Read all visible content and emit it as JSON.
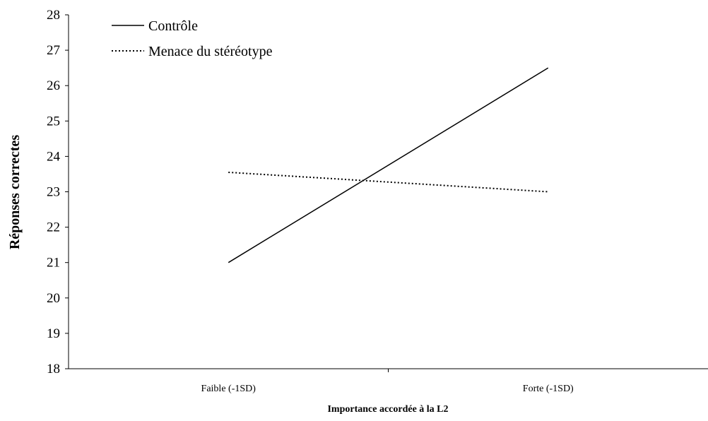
{
  "chart_data": {
    "type": "line",
    "categories": [
      "Faible (-1SD)",
      "Forte (-1SD)"
    ],
    "series": [
      {
        "name": "Contrôle",
        "values": [
          21.0,
          26.5
        ],
        "line_style": "solid",
        "color": "#000000"
      },
      {
        "name": "Menace du stéréotype",
        "values": [
          23.55,
          23.0
        ],
        "line_style": "dotted",
        "color": "#000000"
      }
    ],
    "title": "",
    "xlabel": "Importance accordée à la L2",
    "ylabel": "Réponses correctes",
    "ylim": [
      18,
      28
    ],
    "yticks": [
      18,
      19,
      20,
      21,
      22,
      23,
      24,
      25,
      26,
      27,
      28
    ],
    "grid": false,
    "legend_position": "top-left"
  }
}
